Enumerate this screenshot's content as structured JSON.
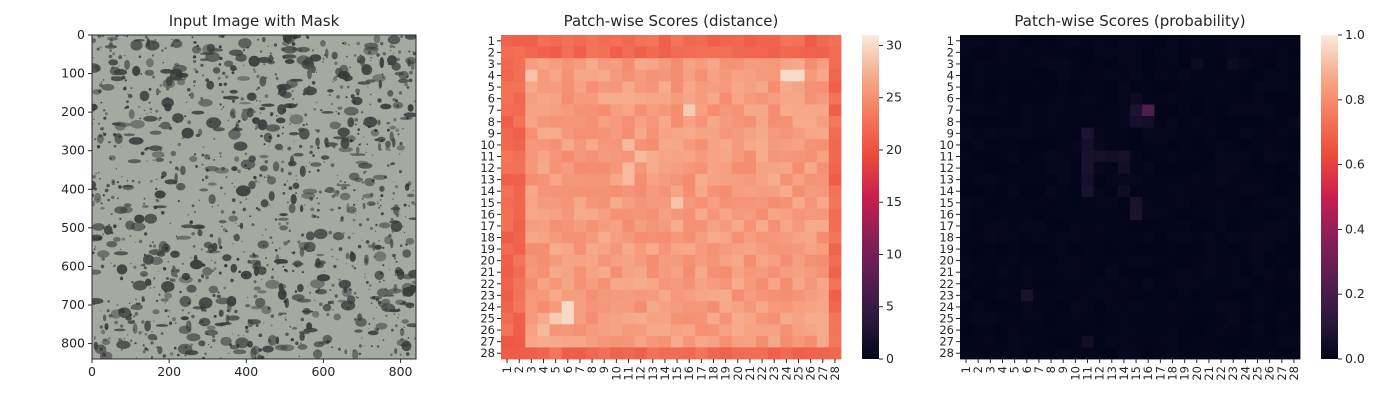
{
  "chart_data": [
    {
      "type": "image",
      "title": "Input Image with Mask",
      "x_ticks": [
        0,
        200,
        400,
        600,
        800
      ],
      "y_ticks": [
        0,
        100,
        200,
        300,
        400,
        500,
        600,
        700,
        800
      ],
      "xlim": [
        0,
        840
      ],
      "ylim": [
        840,
        0
      ],
      "background_color": "#a4aaa2",
      "spot_color": "#3a3c3c"
    },
    {
      "type": "heatmap",
      "title": "Patch-wise Scores (distance)",
      "rows": 28,
      "cols": 28,
      "x_ticks": [
        "1",
        "2",
        "3",
        "4",
        "5",
        "6",
        "7",
        "8",
        "9",
        "10",
        "11",
        "12",
        "13",
        "14",
        "15",
        "16",
        "17",
        "18",
        "19",
        "20",
        "21",
        "22",
        "23",
        "24",
        "25",
        "26",
        "27",
        "28"
      ],
      "y_ticks": [
        "1",
        "2",
        "3",
        "4",
        "5",
        "6",
        "7",
        "8",
        "9",
        "10",
        "11",
        "12",
        "13",
        "14",
        "15",
        "16",
        "17",
        "18",
        "19",
        "20",
        "21",
        "22",
        "23",
        "24",
        "25",
        "26",
        "27",
        "28"
      ],
      "colorbar": {
        "range": [
          0,
          31
        ],
        "ticks": [
          "0",
          "5",
          "10",
          "15",
          "20",
          "25",
          "30"
        ]
      },
      "colormap": "rocket",
      "value_range": [
        20,
        30
      ],
      "edge_value": 22,
      "interior_value": 26,
      "hotspots": [
        {
          "row": 4,
          "col": 24,
          "value": 30
        },
        {
          "row": 4,
          "col": 25,
          "value": 30
        },
        {
          "row": 4,
          "col": 3,
          "value": 28.5
        },
        {
          "row": 7,
          "col": 16,
          "value": 29
        },
        {
          "row": 10,
          "col": 11,
          "value": 28
        },
        {
          "row": 11,
          "col": 12,
          "value": 28
        },
        {
          "row": 12,
          "col": 11,
          "value": 28
        },
        {
          "row": 13,
          "col": 11,
          "value": 28
        },
        {
          "row": 15,
          "col": 15,
          "value": 28.5
        },
        {
          "row": 24,
          "col": 6,
          "value": 30
        },
        {
          "row": 25,
          "col": 6,
          "value": 30
        },
        {
          "row": 25,
          "col": 5,
          "value": 29
        },
        {
          "row": 26,
          "col": 4,
          "value": 28
        },
        {
          "row": 28,
          "col": 1,
          "value": 21
        },
        {
          "row": 27,
          "col": 1,
          "value": 20.5
        }
      ]
    },
    {
      "type": "heatmap",
      "title": "Patch-wise Scores (probability)",
      "rows": 28,
      "cols": 28,
      "x_ticks": [
        "1",
        "2",
        "3",
        "4",
        "5",
        "6",
        "7",
        "8",
        "9",
        "10",
        "11",
        "12",
        "13",
        "14",
        "15",
        "16",
        "17",
        "18",
        "19",
        "20",
        "21",
        "22",
        "23",
        "24",
        "25",
        "26",
        "27",
        "28"
      ],
      "y_ticks": [
        "1",
        "2",
        "3",
        "4",
        "5",
        "6",
        "7",
        "8",
        "9",
        "10",
        "11",
        "12",
        "13",
        "14",
        "15",
        "16",
        "17",
        "18",
        "19",
        "20",
        "21",
        "22",
        "23",
        "24",
        "25",
        "26",
        "27",
        "28"
      ],
      "colorbar": {
        "range": [
          0,
          1
        ],
        "ticks": [
          "0.0",
          "0.2",
          "0.4",
          "0.6",
          "0.8",
          "1.0"
        ]
      },
      "colormap": "rocket",
      "base_value": 0.0,
      "hotspots": [
        {
          "row": 7,
          "col": 16,
          "value": 0.22
        },
        {
          "row": 7,
          "col": 15,
          "value": 0.08
        },
        {
          "row": 8,
          "col": 15,
          "value": 0.06
        },
        {
          "row": 8,
          "col": 16,
          "value": 0.05
        },
        {
          "row": 9,
          "col": 11,
          "value": 0.08
        },
        {
          "row": 10,
          "col": 11,
          "value": 0.06
        },
        {
          "row": 11,
          "col": 11,
          "value": 0.07
        },
        {
          "row": 11,
          "col": 12,
          "value": 0.06
        },
        {
          "row": 11,
          "col": 13,
          "value": 0.05
        },
        {
          "row": 11,
          "col": 14,
          "value": 0.06
        },
        {
          "row": 12,
          "col": 11,
          "value": 0.07
        },
        {
          "row": 12,
          "col": 14,
          "value": 0.05
        },
        {
          "row": 13,
          "col": 11,
          "value": 0.06
        },
        {
          "row": 14,
          "col": 11,
          "value": 0.07
        },
        {
          "row": 14,
          "col": 14,
          "value": 0.04
        },
        {
          "row": 15,
          "col": 15,
          "value": 0.07
        },
        {
          "row": 16,
          "col": 15,
          "value": 0.08
        },
        {
          "row": 23,
          "col": 6,
          "value": 0.07
        },
        {
          "row": 27,
          "col": 11,
          "value": 0.05
        },
        {
          "row": 3,
          "col": 20,
          "value": 0.03
        },
        {
          "row": 3,
          "col": 23,
          "value": 0.03
        },
        {
          "row": 6,
          "col": 15,
          "value": 0.03
        }
      ]
    }
  ]
}
